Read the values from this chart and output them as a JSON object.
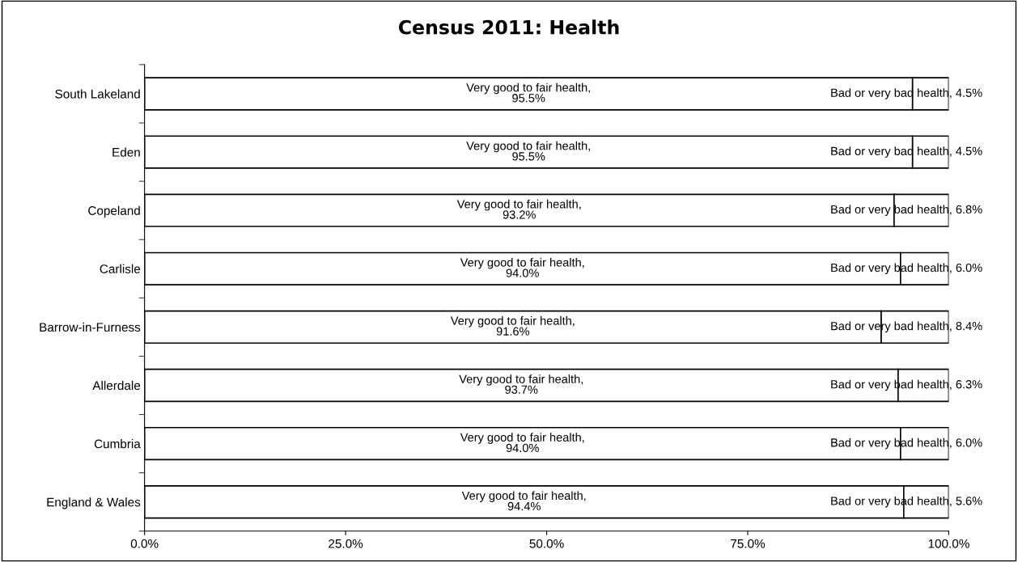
{
  "chart_data": {
    "type": "bar",
    "orientation": "horizontal",
    "stacked": true,
    "title": "Census 2011: Health",
    "categories": [
      "South Lakeland",
      "Eden",
      "Copeland",
      "Carlisle",
      "Barrow-in-Furness",
      "Allerdale",
      "Cumbria",
      "England & Wales"
    ],
    "series": [
      {
        "color": "#ffffff",
        "values": [
          95.5,
          95.5,
          93.2,
          94.0,
          91.6,
          93.7,
          94.0,
          94.4
        ],
        "value_labels": [
          "Very good to fair health,\n95.5%",
          "Very good to fair health,\n95.5%",
          "Very good to fair health,\n93.2%",
          "Very good to fair health,\n94.0%",
          "Very good to fair health,\n91.6%",
          "Very good to fair health,\n93.7%",
          "Very good to fair health,\n94.0%",
          "Very good to fair health,\n94.4%"
        ]
      },
      {
        "color": "#ffffff",
        "values": [
          4.5,
          4.5,
          6.8,
          6.0,
          8.4,
          6.3,
          6.0,
          5.6
        ],
        "value_labels": [
          "Bad or very bad health, 4.5%",
          "Bad or very bad health, 4.5%",
          "Bad or very bad health, 6.8%",
          "Bad or very bad health, 6.0%",
          "Bad or very bad health, 8.4%",
          "Bad or very bad health, 6.3%",
          "Bad or very bad health, 6.0%",
          "Bad or very bad health, 5.6%"
        ]
      }
    ],
    "xlim": [
      0,
      100
    ],
    "xticks": [
      {
        "value": 0,
        "label": "0.0%"
      },
      {
        "value": 25,
        "label": "25.0%"
      },
      {
        "value": 50,
        "label": "50.0%"
      },
      {
        "value": 75,
        "label": "75.0%"
      },
      {
        "value": 100,
        "label": "100.0%"
      }
    ],
    "grid": false,
    "legend": false
  }
}
